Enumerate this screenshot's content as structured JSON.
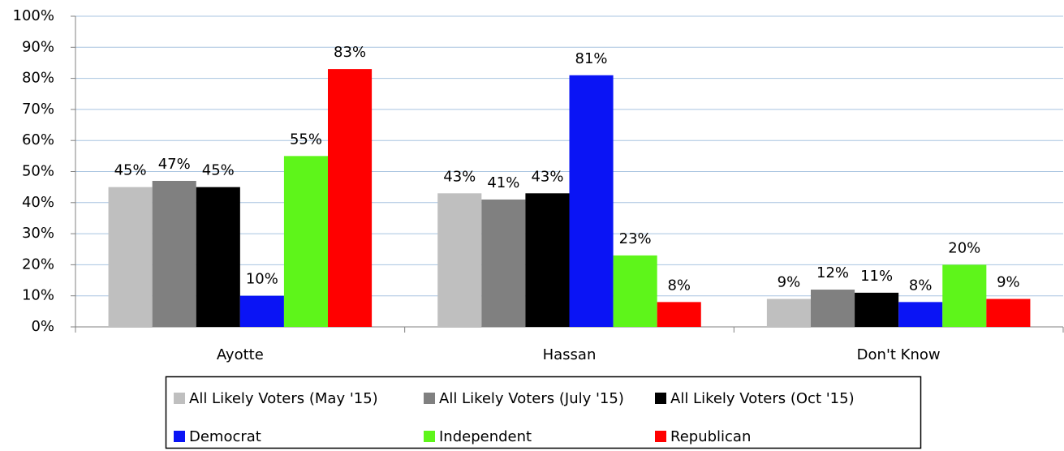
{
  "chart_data": {
    "type": "bar",
    "categories": [
      "Ayotte",
      "Hassan",
      "Don't Know"
    ],
    "series": [
      {
        "name": "All Likely Voters (May '15)",
        "color": "#bfbfbf",
        "values": [
          45,
          43,
          9
        ],
        "value_labels": [
          "45%",
          "43%",
          "9%"
        ]
      },
      {
        "name": "All Likely Voters (July '15)",
        "color": "#808080",
        "values": [
          47,
          41,
          12
        ],
        "value_labels": [
          "47%",
          "41%",
          "12%"
        ]
      },
      {
        "name": "All Likely Voters (Oct '15)",
        "color": "#000000",
        "values": [
          45,
          43,
          11
        ],
        "value_labels": [
          "45%",
          "43%",
          "11%"
        ]
      },
      {
        "name": "Democrat",
        "color": "#0a14f5",
        "values": [
          10,
          81,
          8
        ],
        "value_labels": [
          "10%",
          "81%",
          "8%"
        ]
      },
      {
        "name": "Independent",
        "color": "#5ef51a",
        "values": [
          55,
          23,
          20
        ],
        "value_labels": [
          "55%",
          "23%",
          "20%"
        ]
      },
      {
        "name": "Republican",
        "color": "#ff0000",
        "values": [
          83,
          8,
          9
        ],
        "value_labels": [
          "83%",
          "8%",
          "9%"
        ]
      }
    ],
    "ylim": [
      0,
      100
    ],
    "yticks": [
      {
        "value": 0,
        "label": "0%"
      },
      {
        "value": 10,
        "label": "10%"
      },
      {
        "value": 20,
        "label": "20%"
      },
      {
        "value": 30,
        "label": "30%"
      },
      {
        "value": 40,
        "label": "40%"
      },
      {
        "value": 50,
        "label": "50%"
      },
      {
        "value": 60,
        "label": "60%"
      },
      {
        "value": 70,
        "label": "70%"
      },
      {
        "value": 80,
        "label": "80%"
      },
      {
        "value": 90,
        "label": "90%"
      },
      {
        "value": 100,
        "label": "100%"
      }
    ],
    "grid": true,
    "legend": "bottom"
  }
}
